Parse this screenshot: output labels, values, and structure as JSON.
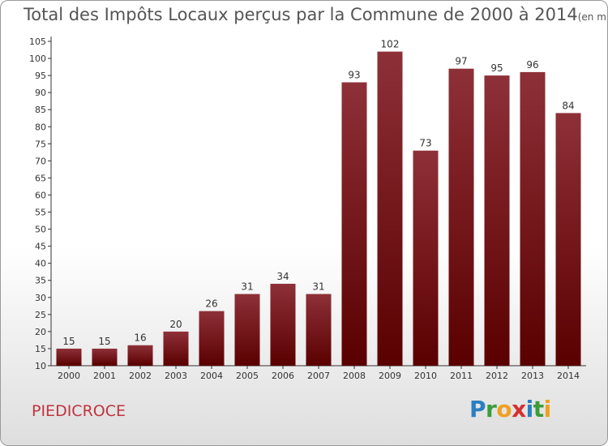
{
  "chart_data": {
    "type": "bar",
    "title": "Total des Impôts Locaux perçus par la Commune de 2000 à 2014",
    "unit_note": "(en milliers d'€)",
    "categories": [
      "2000",
      "2001",
      "2002",
      "2003",
      "2004",
      "2005",
      "2006",
      "2007",
      "2008",
      "2009",
      "2010",
      "2011",
      "2012",
      "2013",
      "2014"
    ],
    "values": [
      15,
      15,
      16,
      20,
      26,
      31,
      34,
      31,
      93,
      102,
      73,
      97,
      95,
      96,
      84
    ],
    "ylim": [
      10,
      105
    ],
    "yticks": [
      10,
      15,
      20,
      25,
      30,
      35,
      40,
      45,
      50,
      55,
      60,
      65,
      70,
      75,
      80,
      85,
      90,
      95,
      100,
      105
    ],
    "xlabel": "",
    "ylabel": "",
    "grid": false,
    "bar_color": "#7a1a1f"
  },
  "commune": "PIEDICROCE",
  "logo": {
    "text": "Proxiti",
    "letters": [
      "P",
      "r",
      "o",
      "x",
      "i",
      "t",
      "i"
    ],
    "colors": [
      "#2a7fc0",
      "#3a9d3a",
      "#f0a020",
      "#d43030",
      "#2a7fc0",
      "#3a9d3a",
      "#f0a020"
    ]
  }
}
